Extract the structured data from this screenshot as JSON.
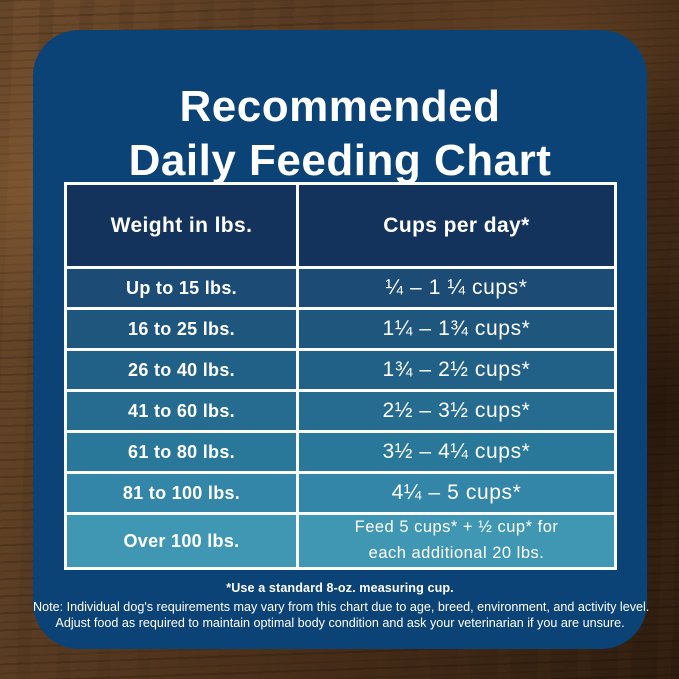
{
  "title": {
    "line1": "Recommended",
    "line2": "Daily Feeding Chart"
  },
  "table": {
    "headers": [
      "Weight in lbs.",
      "Cups per day*"
    ],
    "rows": [
      {
        "weight": "Up to 15 lbs.",
        "cups": "¼ – 1 ¼ cups*"
      },
      {
        "weight": "16 to 25 lbs.",
        "cups": "1¼ – 1¾  cups*"
      },
      {
        "weight": "26 to 40 lbs.",
        "cups": "1¾ – 2½ cups*"
      },
      {
        "weight": "41 to 60 lbs.",
        "cups": "2½ – 3½ cups*"
      },
      {
        "weight": "61 to 80 lbs.",
        "cups": "3½ – 4¼ cups*"
      },
      {
        "weight": "81 to 100 lbs.",
        "cups": "4¼ – 5 cups*"
      },
      {
        "weight": "Over 100 lbs.",
        "cups_line1": "Feed 5 cups* + ½ cup* for",
        "cups_line2": "each additional 20 lbs."
      }
    ],
    "row_colors": [
      "#1c4b76",
      "#1f567e",
      "#226187",
      "#256c90",
      "#297799",
      "#3386a7",
      "#4097b4"
    ]
  },
  "footnotes": {
    "measuring": "*Use a standard 8-oz. measuring cup.",
    "note_line1": "Note: Individual dog's requirements may vary from this chart due to age, breed, environment, and activity level.",
    "note_line2": "Adjust food as required to maintain optimal body condition and ask your veterinarian if you are unsure."
  },
  "colors": {
    "card_background": "#0c4377",
    "header_cell": "#14335c",
    "table_border": "#fbfcfd",
    "text": "#ffffff",
    "wood_dark": "#2d1c0e",
    "wood_light": "#6f4c2c"
  },
  "chart_data": {
    "type": "table",
    "title": "Recommended Daily Feeding Chart",
    "columns": [
      "Weight in lbs.",
      "Cups per day*"
    ],
    "rows": [
      [
        "Up to 15 lbs.",
        "¼ – 1 ¼ cups*"
      ],
      [
        "16 to 25 lbs.",
        "1¼ – 1¾ cups*"
      ],
      [
        "26 to 40 lbs.",
        "1¾ – 2½ cups*"
      ],
      [
        "41 to 60 lbs.",
        "2½ – 3½ cups*"
      ],
      [
        "61 to 80 lbs.",
        "3½ – 4¼ cups*"
      ],
      [
        "81 to 100 lbs.",
        "4¼ – 5 cups*"
      ],
      [
        "Over 100 lbs.",
        "Feed 5 cups* + ½ cup* for each additional 20 lbs."
      ]
    ],
    "footnote": "*Use a standard 8-oz. measuring cup."
  }
}
